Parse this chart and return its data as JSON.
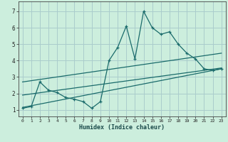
{
  "title": "",
  "xlabel": "Humidex (Indice chaleur)",
  "ylabel": "",
  "background_color": "#cceedd",
  "grid_color": "#aacccc",
  "line_color": "#1a6b6b",
  "xlim": [
    -0.5,
    23.5
  ],
  "ylim": [
    0.6,
    7.6
  ],
  "xticks": [
    0,
    1,
    2,
    3,
    4,
    5,
    6,
    7,
    8,
    9,
    10,
    11,
    12,
    13,
    14,
    15,
    16,
    17,
    18,
    19,
    20,
    21,
    22,
    23
  ],
  "yticks": [
    1,
    2,
    3,
    4,
    5,
    6,
    7
  ],
  "main_x": [
    0,
    1,
    2,
    3,
    4,
    5,
    6,
    7,
    8,
    9,
    10,
    11,
    12,
    13,
    14,
    15,
    16,
    17,
    18,
    19,
    20,
    21,
    22,
    23
  ],
  "main_y": [
    1.1,
    1.2,
    2.7,
    2.2,
    2.05,
    1.75,
    1.65,
    1.5,
    1.1,
    1.5,
    4.0,
    4.8,
    6.1,
    4.1,
    7.0,
    6.0,
    5.6,
    5.75,
    5.0,
    4.45,
    4.1,
    3.5,
    3.4,
    3.5
  ],
  "line1_x": [
    0,
    23
  ],
  "line1_y": [
    1.15,
    3.5
  ],
  "line2_x": [
    0,
    23
  ],
  "line2_y": [
    1.9,
    3.55
  ],
  "line3_x": [
    0,
    23
  ],
  "line3_y": [
    2.7,
    4.45
  ]
}
